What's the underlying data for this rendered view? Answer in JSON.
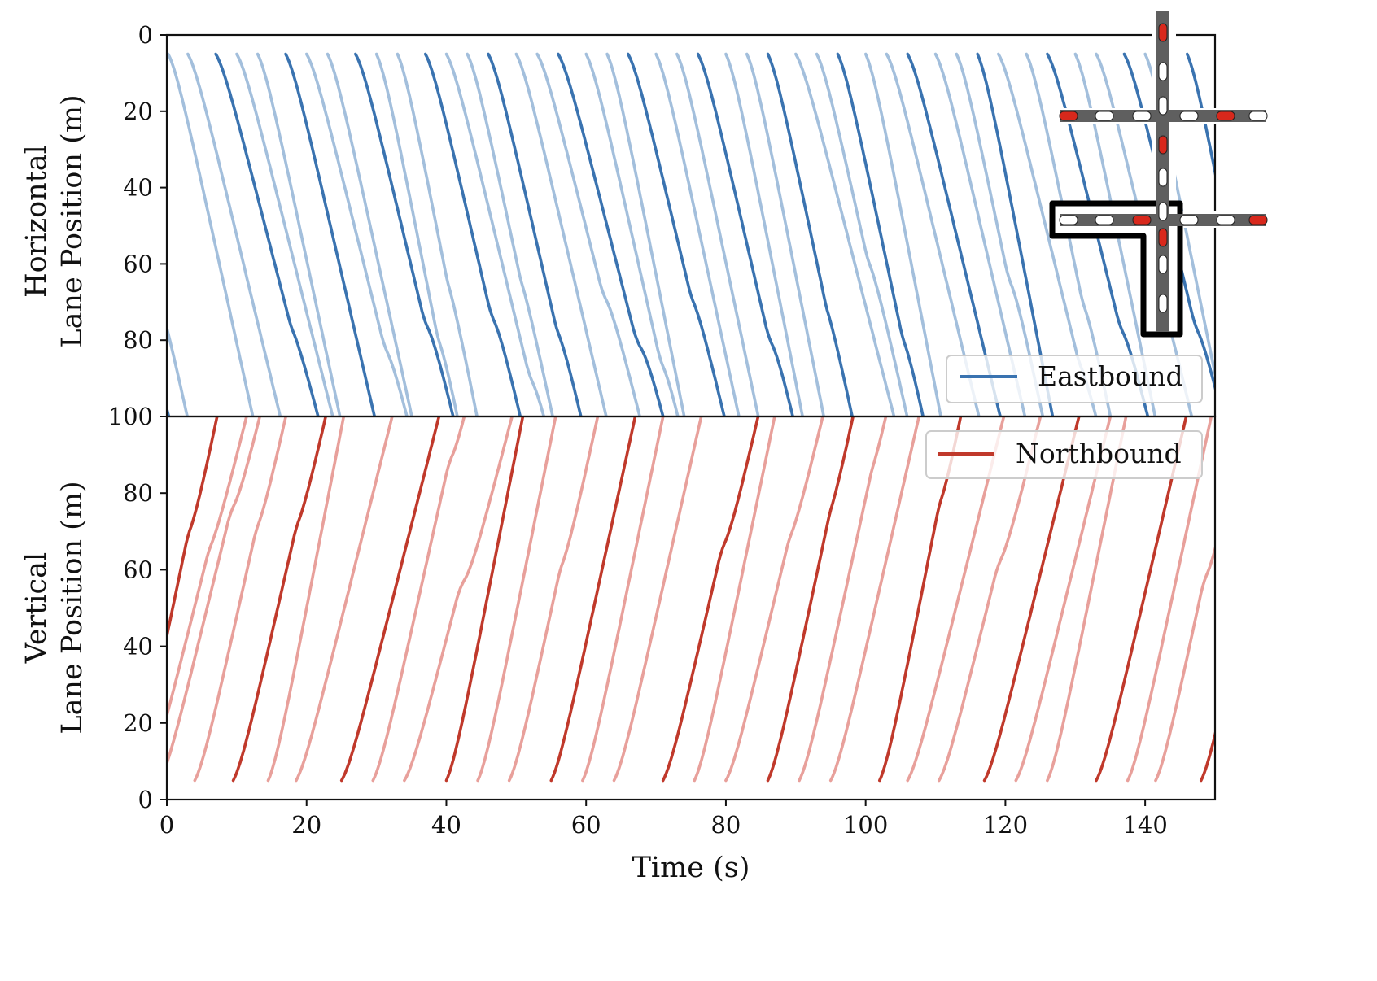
{
  "chart_data": [
    {
      "type": "line",
      "panel": "top",
      "title": "",
      "xlabel": "",
      "ylabel": "Horizontal\nLane Position (m)",
      "ylabel_lines": [
        "Horizontal",
        "Lane Position (m)"
      ],
      "xlim": [
        0,
        150
      ],
      "ylim": [
        100,
        0
      ],
      "y_inverted": true,
      "yticks": [
        0,
        20,
        40,
        60,
        80,
        100
      ],
      "grid": false,
      "legend": {
        "position": "lower right",
        "entries": [
          "Eastbound"
        ]
      },
      "series": [
        {
          "name": "Eastbound",
          "color": "#3a73b0",
          "light_color": "#a3bfdc",
          "description": "Vehicle trajectories moving from 5 m to 100 m; dark lines mark platoon leaders, light lines followers; some vehicles stop/slow near 50-90 m",
          "start_times_s": [
            -4,
            -2,
            0.2,
            3,
            7,
            10,
            13,
            17,
            20,
            23,
            27,
            30,
            33,
            37,
            40,
            43,
            46,
            50,
            53,
            56,
            60,
            63,
            66,
            70,
            73,
            76,
            80,
            83,
            86,
            90,
            93,
            96,
            100,
            103,
            106,
            110,
            113,
            116,
            119,
            123,
            126,
            130,
            133,
            137,
            140,
            146
          ],
          "dark_flags": [
            1,
            0,
            0,
            0,
            1,
            0,
            0,
            1,
            0,
            0,
            1,
            0,
            0,
            1,
            0,
            0,
            1,
            0,
            0,
            1,
            0,
            0,
            1,
            0,
            0,
            1,
            0,
            0,
            1,
            0,
            0,
            1,
            0,
            0,
            1,
            0,
            0,
            1,
            0,
            0,
            1,
            0,
            0,
            1,
            0,
            1
          ],
          "initial_positions_m": [
            75,
            65,
            5,
            5,
            5,
            5,
            5,
            5,
            5,
            5,
            5,
            5,
            5,
            5,
            5,
            5,
            5,
            5,
            5,
            5,
            5,
            5,
            5,
            5,
            5,
            5,
            5,
            5,
            5,
            5,
            5,
            5,
            5,
            5,
            5,
            5,
            5,
            5,
            5,
            5,
            5,
            5,
            5,
            5,
            5,
            5
          ]
        }
      ]
    },
    {
      "type": "line",
      "panel": "bottom",
      "title": "",
      "xlabel": "Time (s)",
      "ylabel": "Vertical\nLane Position (m)",
      "ylabel_lines": [
        "Vertical",
        "Lane Position (m)"
      ],
      "xlim": [
        0,
        150
      ],
      "ylim": [
        0,
        100
      ],
      "xticks": [
        0,
        20,
        40,
        60,
        80,
        100,
        120,
        140
      ],
      "yticks": [
        0,
        20,
        40,
        60,
        80,
        100
      ],
      "grid": false,
      "legend": {
        "position": "upper right",
        "entries": [
          "Northbound"
        ]
      },
      "series": [
        {
          "name": "Northbound",
          "color": "#c0392b",
          "light_color": "#e8a09b",
          "description": "Vehicle trajectories moving from 5 m to 100 m; dark lines mark platoon leaders, light lines followers; vehicles slow/stop near 50-87 m",
          "start_times_s": [
            -5,
            -3,
            -1,
            4,
            9.5,
            14.5,
            18.5,
            25,
            29.5,
            34,
            40,
            44.5,
            49,
            55,
            59.5,
            64,
            71,
            75.5,
            80,
            86,
            90.5,
            95,
            102,
            106,
            110.5,
            117,
            121.5,
            126,
            133,
            137.5,
            141.5,
            148
          ],
          "dark_flags": [
            1,
            0,
            0,
            0,
            1,
            0,
            0,
            1,
            0,
            0,
            1,
            0,
            0,
            1,
            0,
            0,
            1,
            0,
            0,
            1,
            0,
            0,
            1,
            0,
            0,
            1,
            0,
            0,
            1,
            0,
            0,
            1
          ]
        }
      ]
    }
  ],
  "figure": {
    "x_axis_title": "Time (s)",
    "x_tick_labels": [
      "0",
      "20",
      "40",
      "60",
      "80",
      "100",
      "120",
      "140"
    ],
    "top_y_tick_labels": [
      "0",
      "20",
      "40",
      "60",
      "80",
      "100"
    ],
    "bottom_y_tick_labels": [
      "0",
      "20",
      "40",
      "60",
      "80",
      "100"
    ],
    "top_ylabel_line1": "Horizontal",
    "top_ylabel_line2": "Lane Position (m)",
    "bottom_ylabel_line1": "Vertical",
    "bottom_ylabel_line2": "Lane Position (m)",
    "legend_top_label": "Eastbound",
    "legend_bottom_label": "Northbound",
    "colors": {
      "east_dark": "#3a73b0",
      "east_light": "#a3bfdc",
      "north_dark": "#c0392b",
      "north_light": "#e8a09b",
      "road": "#5f5f5f",
      "car_red": "#d8281c",
      "car_white": "#ffffff",
      "highlight_outline": "#000000"
    },
    "inset": {
      "description": "Intersection grid diagram with cars; an L-shaped region around the lower-left intersection is highlighted with a black outline",
      "horizontal_roads": 2,
      "vertical_roads": 1,
      "cars_top_row": [
        "red",
        "white",
        "white",
        "white",
        "red",
        "white"
      ],
      "cars_bottom_row": [
        "white",
        "white",
        "red",
        "white",
        "white",
        "red"
      ],
      "cars_vertical": [
        "red",
        "white",
        "white",
        "red",
        "white",
        "white",
        "red",
        "white",
        "white"
      ]
    }
  }
}
